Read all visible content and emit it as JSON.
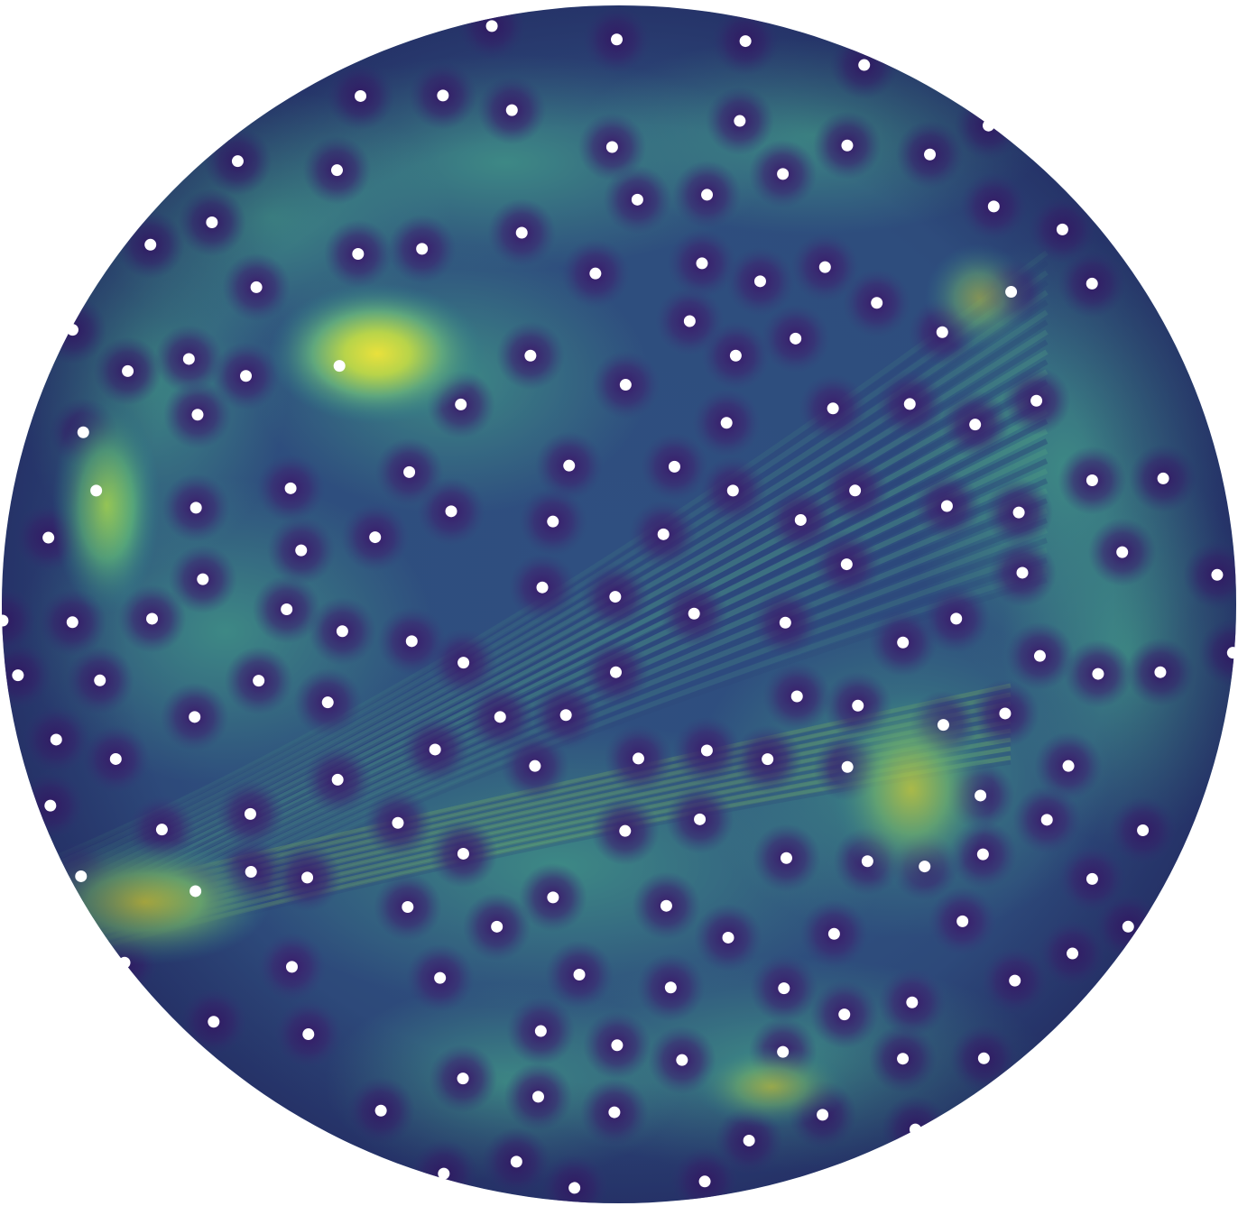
{
  "figure": {
    "subject": "sphere-heatmap",
    "colormap": [
      "#440154",
      "#3b528b",
      "#21918c",
      "#5ec962",
      "#fde725"
    ],
    "background_color": "#ffffff",
    "marker_color": "#ffffff",
    "marker_count": 170,
    "hotspot_count": 3
  }
}
